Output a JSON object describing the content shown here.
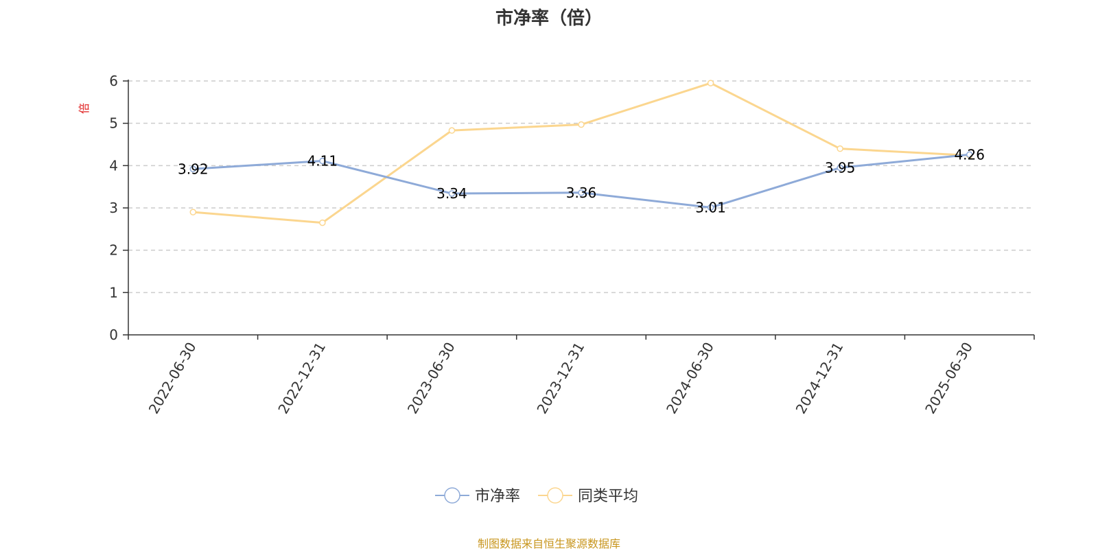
{
  "source_note": "制图数据来自恒生聚源数据库",
  "colors": {
    "pb": "#8eaad8",
    "peer": "#fbd68f",
    "unit": "#e02020",
    "source": "#c8961e"
  },
  "chart_data": {
    "type": "line",
    "title": "市净率（倍）",
    "ylabel": "倍",
    "xlabel": "",
    "categories": [
      "2022-06-30",
      "2022-12-31",
      "2023-06-30",
      "2023-12-31",
      "2024-06-30",
      "2024-12-31",
      "2025-06-30"
    ],
    "ylim": [
      0,
      6
    ],
    "yticks": [
      0,
      1,
      2,
      3,
      4,
      5,
      6
    ],
    "grid": true,
    "legend_position": "bottom",
    "series": [
      {
        "name": "市净率",
        "values": [
          3.92,
          4.11,
          3.34,
          3.36,
          3.01,
          3.95,
          4.26
        ],
        "labels": [
          "3.92",
          "4.11",
          "3.34",
          "3.36",
          "3.01",
          "3.95",
          "4.26"
        ],
        "show_labels": true
      },
      {
        "name": "同类平均",
        "values": [
          2.9,
          2.65,
          4.83,
          4.97,
          5.95,
          4.4,
          4.24
        ],
        "show_labels": false
      }
    ]
  }
}
